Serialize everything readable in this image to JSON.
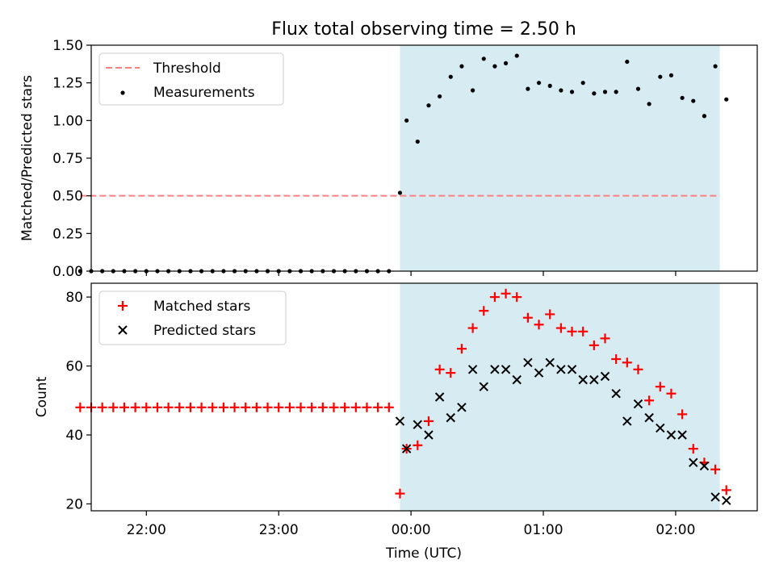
{
  "chart_data": [
    {
      "type": "scatter",
      "title": "Flux total observing time = 2.50 h",
      "xlabel": "",
      "ylabel": "Matched/Predicted stars",
      "ylim": [
        0,
        1.5
      ],
      "yticks": [
        "0.00",
        "0.25",
        "0.50",
        "0.75",
        "1.00",
        "1.25",
        "1.50"
      ],
      "xlim": [
        "21:35",
        "02:37"
      ],
      "grid": false,
      "legend_position": "top-left",
      "observing_window": [
        "23:55",
        "02:20"
      ],
      "threshold": {
        "name": "Threshold",
        "value": 0.5,
        "x_range": [
          "21:30",
          "02:20"
        ],
        "color": "#ff7f7f"
      },
      "series": [
        {
          "name": "Measurements",
          "color": "#000000",
          "points": [
            [
              "21:30",
              0.0
            ],
            [
              "21:35",
              0.0
            ],
            [
              "21:40",
              0.0
            ],
            [
              "21:45",
              0.0
            ],
            [
              "21:50",
              0.0
            ],
            [
              "21:55",
              0.0
            ],
            [
              "22:00",
              0.0
            ],
            [
              "22:05",
              0.0
            ],
            [
              "22:10",
              0.0
            ],
            [
              "22:15",
              0.0
            ],
            [
              "22:20",
              0.0
            ],
            [
              "22:25",
              0.0
            ],
            [
              "22:30",
              0.0
            ],
            [
              "22:35",
              0.0
            ],
            [
              "22:40",
              0.0
            ],
            [
              "22:45",
              0.0
            ],
            [
              "22:50",
              0.0
            ],
            [
              "22:55",
              0.0
            ],
            [
              "23:00",
              0.0
            ],
            [
              "23:05",
              0.0
            ],
            [
              "23:10",
              0.0
            ],
            [
              "23:15",
              0.0
            ],
            [
              "23:20",
              0.0
            ],
            [
              "23:25",
              0.0
            ],
            [
              "23:30",
              0.0
            ],
            [
              "23:35",
              0.0
            ],
            [
              "23:40",
              0.0
            ],
            [
              "23:45",
              0.0
            ],
            [
              "23:50",
              0.0
            ],
            [
              "23:55",
              0.52
            ],
            [
              "23:58",
              1.0
            ],
            [
              "00:03",
              0.86
            ],
            [
              "00:08",
              1.1
            ],
            [
              "00:13",
              1.16
            ],
            [
              "00:18",
              1.29
            ],
            [
              "00:23",
              1.36
            ],
            [
              "00:28",
              1.2
            ],
            [
              "00:33",
              1.41
            ],
            [
              "00:38",
              1.36
            ],
            [
              "00:43",
              1.38
            ],
            [
              "00:48",
              1.43
            ],
            [
              "00:53",
              1.21
            ],
            [
              "00:58",
              1.25
            ],
            [
              "01:03",
              1.23
            ],
            [
              "01:08",
              1.2
            ],
            [
              "01:13",
              1.19
            ],
            [
              "01:18",
              1.25
            ],
            [
              "01:23",
              1.18
            ],
            [
              "01:28",
              1.19
            ],
            [
              "01:33",
              1.19
            ],
            [
              "01:38",
              1.39
            ],
            [
              "01:43",
              1.21
            ],
            [
              "01:48",
              1.11
            ],
            [
              "01:53",
              1.29
            ],
            [
              "01:58",
              1.3
            ],
            [
              "02:03",
              1.15
            ],
            [
              "02:08",
              1.13
            ],
            [
              "02:13",
              1.03
            ],
            [
              "02:18",
              1.36
            ],
            [
              "02:23",
              1.14
            ]
          ]
        }
      ]
    },
    {
      "type": "scatter",
      "title": "",
      "xlabel": "Time (UTC)",
      "ylabel": "Count",
      "ylim": [
        18,
        84
      ],
      "yticks": [
        "20",
        "40",
        "60",
        "80"
      ],
      "xlim": [
        "21:35",
        "02:37"
      ],
      "xticks": [
        "22:00",
        "23:00",
        "00:00",
        "01:00",
        "02:00"
      ],
      "grid": false,
      "legend_position": "top-left",
      "observing_window": [
        "23:55",
        "02:20"
      ],
      "series": [
        {
          "name": "Matched stars",
          "color": "#ff0000",
          "marker": "plus",
          "points": [
            [
              "21:30",
              48
            ],
            [
              "21:35",
              48
            ],
            [
              "21:40",
              48
            ],
            [
              "21:45",
              48
            ],
            [
              "21:50",
              48
            ],
            [
              "21:55",
              48
            ],
            [
              "22:00",
              48
            ],
            [
              "22:05",
              48
            ],
            [
              "22:10",
              48
            ],
            [
              "22:15",
              48
            ],
            [
              "22:20",
              48
            ],
            [
              "22:25",
              48
            ],
            [
              "22:30",
              48
            ],
            [
              "22:35",
              48
            ],
            [
              "22:40",
              48
            ],
            [
              "22:45",
              48
            ],
            [
              "22:50",
              48
            ],
            [
              "22:55",
              48
            ],
            [
              "23:00",
              48
            ],
            [
              "23:05",
              48
            ],
            [
              "23:10",
              48
            ],
            [
              "23:15",
              48
            ],
            [
              "23:20",
              48
            ],
            [
              "23:25",
              48
            ],
            [
              "23:30",
              48
            ],
            [
              "23:35",
              48
            ],
            [
              "23:40",
              48
            ],
            [
              "23:45",
              48
            ],
            [
              "23:50",
              48
            ],
            [
              "23:55",
              23
            ],
            [
              "23:58",
              36
            ],
            [
              "00:03",
              37
            ],
            [
              "00:08",
              44
            ],
            [
              "00:13",
              59
            ],
            [
              "00:18",
              58
            ],
            [
              "00:23",
              65
            ],
            [
              "00:28",
              71
            ],
            [
              "00:33",
              76
            ],
            [
              "00:38",
              80
            ],
            [
              "00:43",
              81
            ],
            [
              "00:48",
              80
            ],
            [
              "00:53",
              74
            ],
            [
              "00:58",
              72
            ],
            [
              "01:03",
              75
            ],
            [
              "01:08",
              71
            ],
            [
              "01:13",
              70
            ],
            [
              "01:18",
              70
            ],
            [
              "01:23",
              66
            ],
            [
              "01:28",
              68
            ],
            [
              "01:33",
              62
            ],
            [
              "01:38",
              61
            ],
            [
              "01:43",
              59
            ],
            [
              "01:48",
              50
            ],
            [
              "01:53",
              54
            ],
            [
              "01:58",
              52
            ],
            [
              "02:03",
              46
            ],
            [
              "02:08",
              36
            ],
            [
              "02:13",
              32
            ],
            [
              "02:18",
              30
            ],
            [
              "02:23",
              24
            ]
          ]
        },
        {
          "name": "Predicted stars",
          "color": "#000000",
          "marker": "x",
          "points": [
            [
              "23:55",
              44
            ],
            [
              "23:58",
              36
            ],
            [
              "00:03",
              43
            ],
            [
              "00:08",
              40
            ],
            [
              "00:13",
              51
            ],
            [
              "00:18",
              45
            ],
            [
              "00:23",
              48
            ],
            [
              "00:28",
              59
            ],
            [
              "00:33",
              54
            ],
            [
              "00:38",
              59
            ],
            [
              "00:43",
              59
            ],
            [
              "00:48",
              56
            ],
            [
              "00:53",
              61
            ],
            [
              "00:58",
              58
            ],
            [
              "01:03",
              61
            ],
            [
              "01:08",
              59
            ],
            [
              "01:13",
              59
            ],
            [
              "01:18",
              56
            ],
            [
              "01:23",
              56
            ],
            [
              "01:28",
              57
            ],
            [
              "01:33",
              52
            ],
            [
              "01:38",
              44
            ],
            [
              "01:43",
              49
            ],
            [
              "01:48",
              45
            ],
            [
              "01:53",
              42
            ],
            [
              "01:58",
              40
            ],
            [
              "02:03",
              40
            ],
            [
              "02:08",
              32
            ],
            [
              "02:13",
              31
            ],
            [
              "02:18",
              22
            ],
            [
              "02:23",
              21
            ]
          ]
        }
      ]
    }
  ]
}
